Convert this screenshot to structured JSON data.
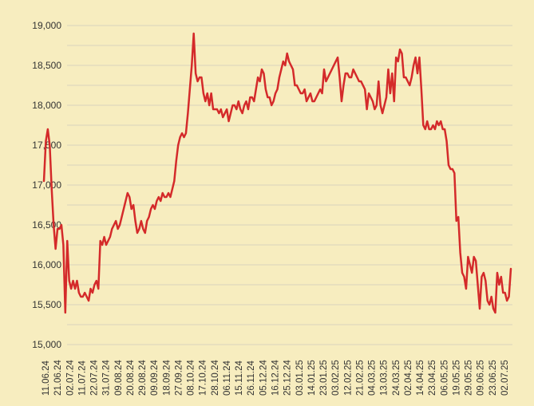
{
  "chart_data": {
    "type": "line",
    "title": "",
    "xlabel": "",
    "ylabel": "",
    "ylim": [
      15000,
      19000
    ],
    "y_ticks": [
      15000,
      15500,
      16000,
      16500,
      17000,
      17500,
      18000,
      18500,
      19000
    ],
    "y_tick_labels": [
      "15,000",
      "15,500",
      "16,000",
      "16,500",
      "17,000",
      "17,500",
      "18,000",
      "18,500",
      "19,000"
    ],
    "x_tick_labels": [
      "11.06.24",
      "21.06.24",
      "02.07.24",
      "11.07.24",
      "22.07.24",
      "31.07.24",
      "09.08.24",
      "20.08.24",
      "29.08.24",
      "09.09.24",
      "18.09.24",
      "27.09.24",
      "08.10.24",
      "17.10.24",
      "28.10.24",
      "06.11.24",
      "15.11.24",
      "26.11.24",
      "05.12.24",
      "16.12.24",
      "25.12.24",
      "03.01.25",
      "14.01.25",
      "23.01.25",
      "03.02.25",
      "12.02.25",
      "21.02.25",
      "04.03.25",
      "13.03.25",
      "24.03.25",
      "02.04.25",
      "14.04.25",
      "23.04.25",
      "06.05.25",
      "19.05.25",
      "29.05.25",
      "09.06.25",
      "23.06.25",
      "02.07.25"
    ],
    "grid": true,
    "legend": "none",
    "series": [
      {
        "color": "#d42a2a",
        "values": [
          17050,
          17550,
          17700,
          17500,
          16950,
          16500,
          16200,
          16450,
          16450,
          16500,
          16250,
          15400,
          16300,
          15800,
          15700,
          15800,
          15700,
          15800,
          15650,
          15600,
          15600,
          15650,
          15600,
          15550,
          15700,
          15650,
          15750,
          15800,
          15700,
          16300,
          16250,
          16350,
          16250,
          16300,
          16350,
          16450,
          16500,
          16550,
          16450,
          16500,
          16600,
          16700,
          16800,
          16900,
          16850,
          16700,
          16750,
          16550,
          16400,
          16450,
          16550,
          16450,
          16400,
          16550,
          16600,
          16700,
          16750,
          16700,
          16800,
          16850,
          16800,
          16900,
          16850,
          16850,
          16900,
          16850,
          16950,
          17050,
          17300,
          17500,
          17600,
          17650,
          17600,
          17650,
          17900,
          18200,
          18500,
          18900,
          18400,
          18300,
          18350,
          18350,
          18150,
          18050,
          18150,
          18000,
          18150,
          17950,
          17950,
          17950,
          17900,
          17950,
          17850,
          17900,
          17950,
          17800,
          17900,
          18000,
          18000,
          17950,
          18050,
          17950,
          17900,
          18000,
          18050,
          17950,
          18100,
          18100,
          18050,
          18200,
          18350,
          18300,
          18450,
          18400,
          18200,
          18100,
          18100,
          18000,
          18050,
          18150,
          18200,
          18350,
          18450,
          18550,
          18500,
          18650,
          18550,
          18500,
          18450,
          18250,
          18250,
          18200,
          18150,
          18150,
          18200,
          18050,
          18100,
          18150,
          18050,
          18050,
          18100,
          18150,
          18200,
          18150,
          18450,
          18300,
          18350,
          18400,
          18450,
          18500,
          18550,
          18600,
          18350,
          18050,
          18250,
          18400,
          18400,
          18350,
          18350,
          18450,
          18400,
          18350,
          18300,
          18300,
          18250,
          18200,
          17950,
          18150,
          18100,
          18050,
          17950,
          18000,
          18300,
          18000,
          17900,
          18000,
          18100,
          18450,
          18150,
          18400,
          18050,
          18600,
          18550,
          18700,
          18650,
          18350,
          18350,
          18300,
          18250,
          18350,
          18500,
          18600,
          18400,
          18600,
          18200,
          17750,
          17700,
          17800,
          17700,
          17700,
          17750,
          17700,
          17800,
          17750,
          17800,
          17700,
          17700,
          17550,
          17250,
          17200,
          17200,
          17150,
          16550,
          16600,
          16150,
          15900,
          15850,
          15700,
          16100,
          16000,
          15900,
          16100,
          16050,
          15750,
          15450,
          15850,
          15900,
          15800,
          15550,
          15500,
          15600,
          15450,
          15400,
          15900,
          15750,
          15850,
          15650,
          15650,
          15550,
          15600,
          15950
        ]
      }
    ]
  }
}
